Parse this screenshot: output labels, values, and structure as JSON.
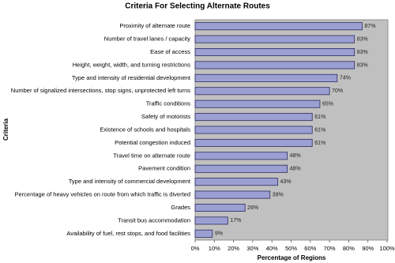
{
  "chart_data": {
    "type": "hbar",
    "title": "Criteria For Selecting Alternate Routes",
    "x_label": "Percentage of Regions",
    "y_label": "Criteria",
    "categories": [
      "Proximity of alternate route",
      "Number of travel lanes / capacity",
      "Ease of access",
      "Height, weight, width, and turning restrictions",
      "Type and intensity of residential development",
      "Number of signalized intersections, stop signs, unprotected left turns",
      "Traffic conditions",
      "Safety of motorists",
      "Existence of schools and hospitals",
      "Potential congestion induced",
      "Travel time on alternate route",
      "Pavement condition",
      "Type and intensity of commercial development",
      "Percentage of heavy vehicles on route from which traffic is diverted",
      "Grades",
      "Transit bus accommodation",
      "Availability of fuel, rest stops, and food facilities"
    ],
    "values": [
      87,
      83,
      83,
      83,
      74,
      70,
      65,
      61,
      61,
      61,
      48,
      48,
      43,
      39,
      26,
      17,
      9
    ],
    "value_labels": [
      "87%",
      "83%",
      "83%",
      "83%",
      "74%",
      "70%",
      "65%",
      "61%",
      "61%",
      "61%",
      "48%",
      "48%",
      "43%",
      "39%",
      "26%",
      "17%",
      "9%"
    ],
    "color": "#9c9fd2",
    "xlim": [
      0,
      100
    ],
    "xticks": [
      {
        "value": 0,
        "label": "0%"
      },
      {
        "value": 10,
        "label": "10%"
      },
      {
        "value": 20,
        "label": "20%"
      },
      {
        "value": 30,
        "label": "30%"
      },
      {
        "value": 40,
        "label": "40%"
      },
      {
        "value": 50,
        "label": "50%"
      },
      {
        "value": 60,
        "label": "60%"
      },
      {
        "value": 70,
        "label": "70%"
      },
      {
        "value": 80,
        "label": "80%"
      },
      {
        "value": 90,
        "label": "90%"
      },
      {
        "value": 100,
        "label": "100%"
      }
    ]
  }
}
